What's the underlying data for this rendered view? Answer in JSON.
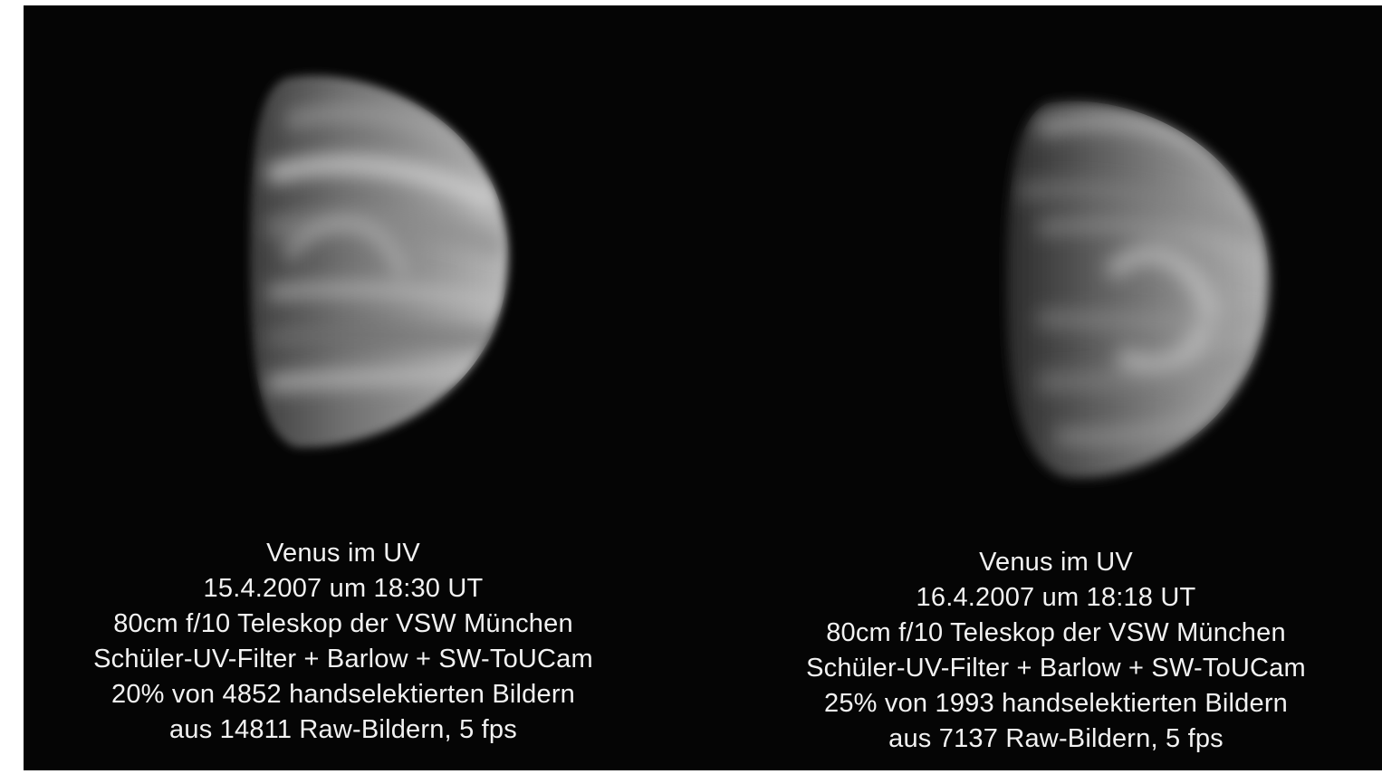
{
  "panels": [
    {
      "caption": {
        "title": "Venus im UV",
        "date": "15.4.2007 um 18:30 UT",
        "telescope": "80cm f/10 Teleskop der VSW München",
        "equipment": "Schüler-UV-Filter + Barlow + SW-ToUCam",
        "selection": "20% von 4852 handselektierten Bildern",
        "raw": "aus 14811 Raw-Bildern, 5 fps"
      }
    },
    {
      "caption": {
        "title": "Venus im UV",
        "date": "16.4.2007 um 18:18 UT",
        "telescope": "80cm f/10 Teleskop der VSW München",
        "equipment": "Schüler-UV-Filter + Barlow + SW-ToUCam",
        "selection": "25% von 1993 handselektierten Bildern",
        "raw": "aus 7137 Raw-Bildern, 5 fps"
      }
    }
  ],
  "colors": {
    "background": "#050505",
    "text": "#f2f2f2"
  }
}
